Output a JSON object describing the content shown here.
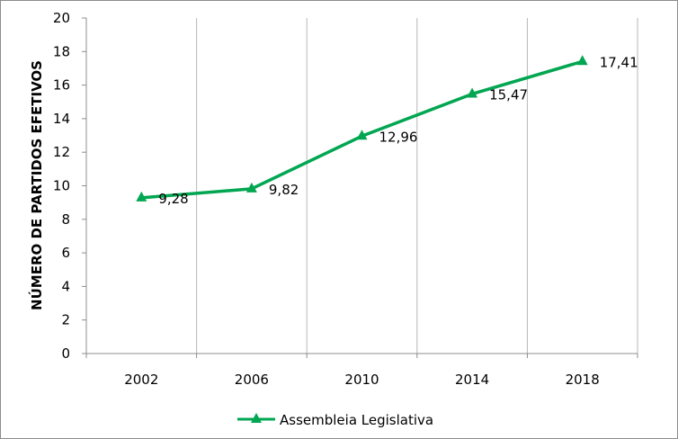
{
  "chart_data": {
    "type": "line",
    "title": "",
    "xlabel": "",
    "ylabel": "NÚMERO DE PARTIDOS EFETIVOS",
    "categories": [
      "2002",
      "2006",
      "2010",
      "2014",
      "2018"
    ],
    "series": [
      {
        "name": "Assembleia Legislativa",
        "values": [
          9.28,
          9.82,
          12.96,
          15.47,
          17.41
        ],
        "labels": [
          "9,28",
          "9,82",
          "12,96",
          "15,47",
          "17,41"
        ],
        "color": "#00a651",
        "marker": "triangle"
      }
    ],
    "ylim": [
      0,
      20
    ],
    "yticks": [
      0,
      2,
      4,
      6,
      8,
      10,
      12,
      14,
      16,
      18,
      20
    ],
    "grid": "vertical",
    "legend": "bottom"
  }
}
